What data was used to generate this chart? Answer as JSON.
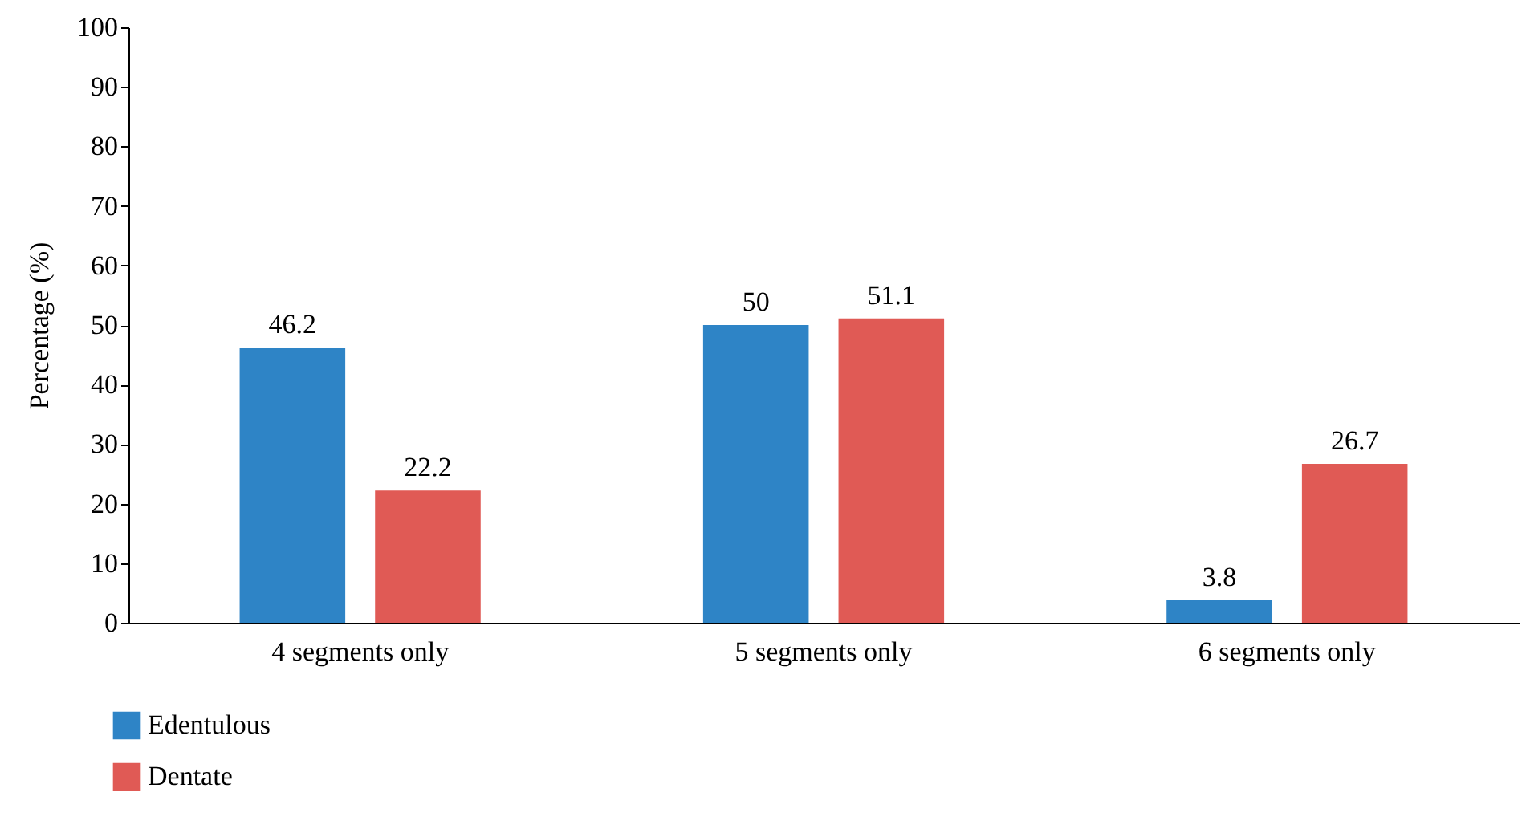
{
  "chart_data": {
    "type": "bar",
    "ylabel": "Percentage (%)",
    "categories": [
      "4 segments only",
      "5 segments only",
      "6 segments only"
    ],
    "series": [
      {
        "name": "Edentulous",
        "color": "#2e84c6",
        "values": [
          46.2,
          50,
          3.8
        ]
      },
      {
        "name": "Dentate",
        "color": "#e05a55",
        "values": [
          22.2,
          51.1,
          26.7
        ]
      }
    ],
    "ylim": [
      0,
      100
    ],
    "yticks": [
      0,
      10,
      20,
      30,
      40,
      50,
      60,
      70,
      80,
      90,
      100
    ],
    "grid": false,
    "legend": "bottom left",
    "data_labels": true
  }
}
